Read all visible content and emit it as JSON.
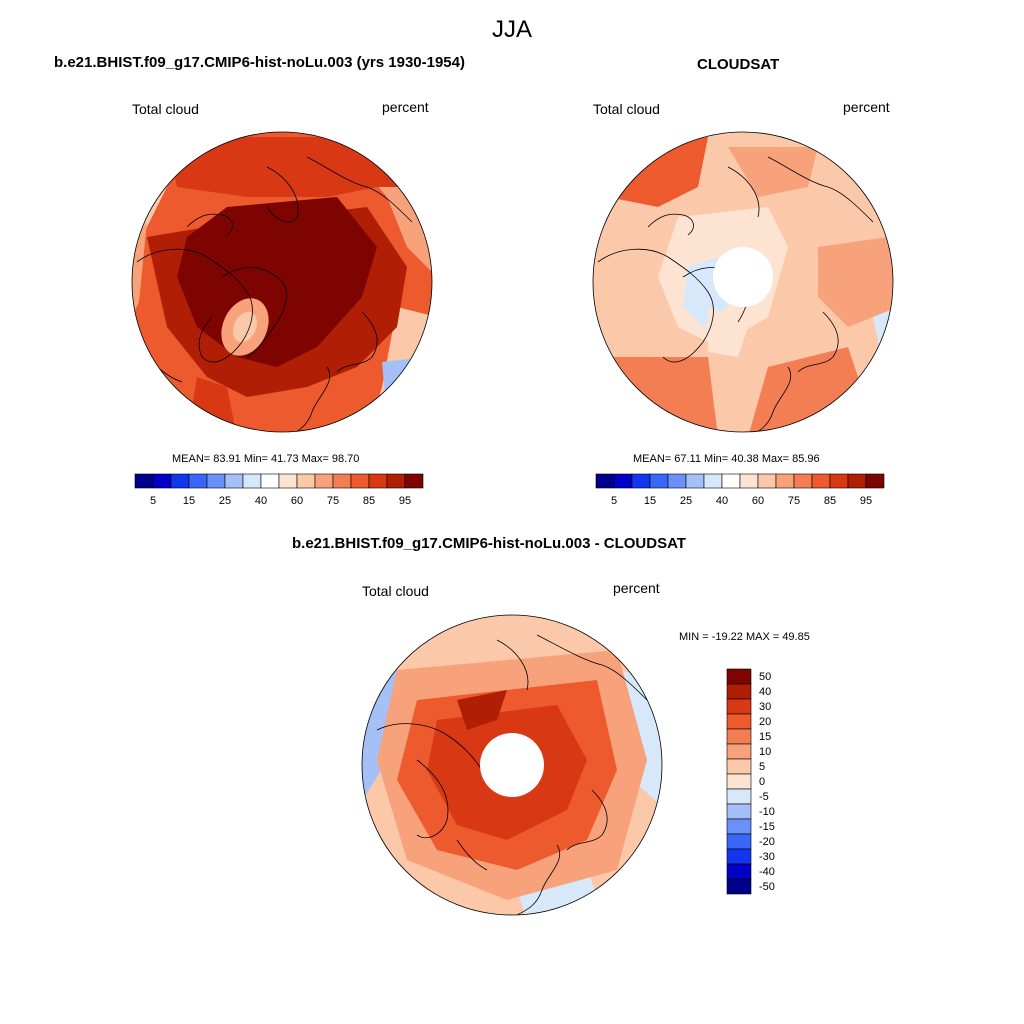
{
  "figure_title": "JJA",
  "panels": [
    {
      "title": "b.e21.BHIST.f09_g17.CMIP6-hist-noLu.003 (yrs 1930-1954)",
      "variable": "Total cloud",
      "units": "percent",
      "stats": "MEAN=  83.91  Min=  41.73  Max=  98.70"
    },
    {
      "title": "CLOUDSAT",
      "variable": "Total cloud",
      "units": "percent",
      "stats": "MEAN=  67.11  Min=  40.38  Max=  85.96"
    },
    {
      "title": "b.e21.BHIST.f09_g17.CMIP6-hist-noLu.003 - CLOUDSAT",
      "variable": "Total cloud",
      "units": "percent",
      "stats": "MIN = -19.22 MAX =  49.85"
    }
  ],
  "colorbar_abs": {
    "colors": [
      "#00008a",
      "#0000c8",
      "#1236ee",
      "#3a66fa",
      "#6a90fa",
      "#a4c0f6",
      "#d6e8fa",
      "#ffffff",
      "#fde4d2",
      "#fbc8aa",
      "#f8a27c",
      "#f47e54",
      "#ec5a2e",
      "#d93814",
      "#b01e06",
      "#7e0402"
    ],
    "tick_labels": [
      "5",
      "15",
      "25",
      "40",
      "60",
      "75",
      "85",
      "95"
    ]
  },
  "colorbar_diff": {
    "colors": [
      "#7e0402",
      "#b01e06",
      "#d93814",
      "#ec5a2e",
      "#f47e54",
      "#f8a27c",
      "#fbc8aa",
      "#fde4d2",
      "#d6e8fa",
      "#a4c0f6",
      "#6a90fa",
      "#3a66fa",
      "#1236ee",
      "#0000c8",
      "#00008a"
    ],
    "tick_labels": [
      "50",
      "40",
      "30",
      "20",
      "15",
      "10",
      "5",
      "0",
      "-5",
      "-10",
      "-15",
      "-20",
      "-30",
      "-40",
      "-50"
    ]
  },
  "map_colors": {
    "dark_red": "#7e0402",
    "red": "#b01e06",
    "orange_red": "#d93814",
    "orange": "#ec5a2e",
    "light_orange": "#f47e54",
    "salmon": "#f8a27c",
    "peach": "#fbc8aa",
    "cream": "#fde4d2",
    "light_blue": "#d6e8fa",
    "pale_blue": "#a4c0f6",
    "blue": "#6a90fa"
  }
}
